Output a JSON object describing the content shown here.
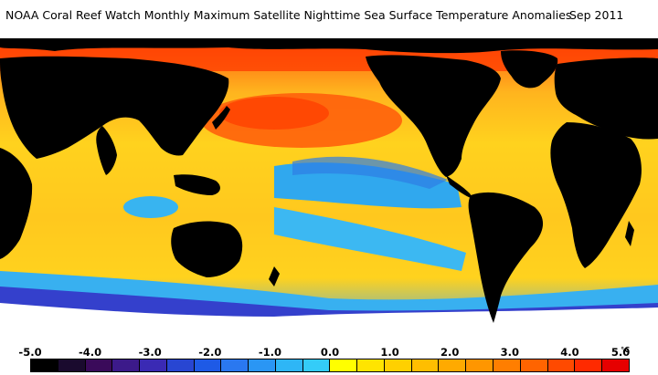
{
  "title": {
    "main": "NOAA Coral Reef Watch Monthly Maximum Satellite Nighttime Sea Surface Temperature Anomalies",
    "date": "Sep 2011"
  },
  "colorbar": {
    "unit": "°C",
    "labels": [
      "-5.0",
      "-4.0",
      "-3.0",
      "-2.0",
      "-1.0",
      "0.0",
      "1.0",
      "2.0",
      "3.0",
      "4.0",
      "5.0"
    ],
    "colors": [
      "#000000",
      "#1a0a2e",
      "#3a0a5a",
      "#3c1a8a",
      "#3a2ab4",
      "#2846d2",
      "#1e5ae6",
      "#2a78f0",
      "#2a96f4",
      "#2eb6f6",
      "#34ccf8",
      "#ffff00",
      "#ffe400",
      "#ffd000",
      "#ffbe00",
      "#ffaa00",
      "#ff9600",
      "#ff7e00",
      "#ff6400",
      "#ff4a00",
      "#ff2a00",
      "#e60000"
    ]
  },
  "map_colors": {
    "land": "#000000",
    "ice": "#ffffff",
    "ocean_warm": "#ffd21e",
    "ocean_hot": "#ff6a00",
    "ocean_cool": "#34b4f0",
    "ocean_cold": "#2c3ad0"
  }
}
